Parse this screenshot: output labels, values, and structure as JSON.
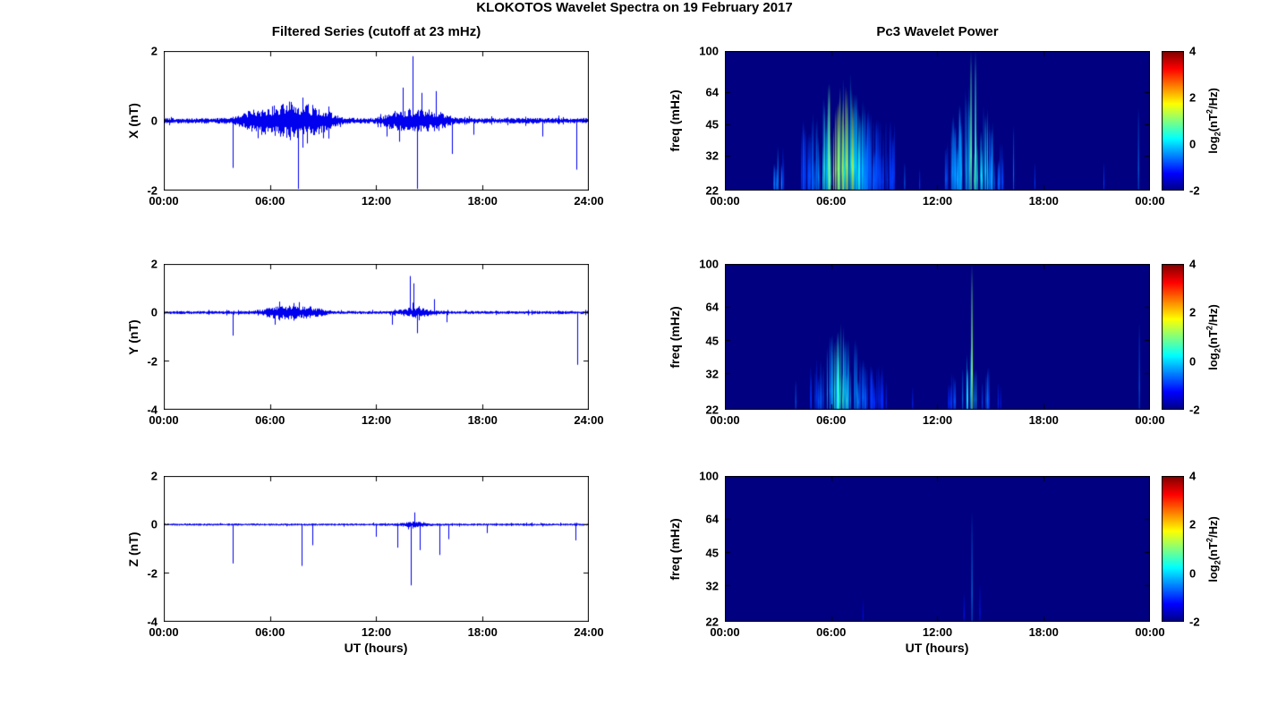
{
  "title": "KLOKOTOS Wavelet Spectra on 19 February 2017",
  "left_column_title": "Filtered Series (cutoff at 23 mHz)",
  "right_column_title": "Pc3 Wavelet Power",
  "xlabel": "UT (hours)",
  "colorbar": {
    "ticks": [
      "4",
      "2",
      "0",
      "-2"
    ],
    "tick_values": [
      4,
      2,
      0,
      -2
    ],
    "clim": [
      -2,
      4
    ],
    "label_pre": "log",
    "label_sub": "2",
    "label_mid": "(nT",
    "label_sup": "2",
    "label_post": "/Hz)"
  },
  "chart_data": [
    {
      "type": "line",
      "ylabel": "X (nT)",
      "ylim": [
        -2,
        2
      ],
      "yticks": [
        2,
        0,
        -2
      ],
      "ytick_labels": [
        "2",
        "0",
        "-2"
      ],
      "xtick_labels": [
        "00:00",
        "06:00",
        "12:00",
        "18:00",
        "24:00"
      ],
      "noise_base": 0.05,
      "bursts": [
        [
          5.0,
          0.9,
          0.1
        ],
        [
          7.0,
          1.5,
          0.3
        ],
        [
          8.8,
          0.9,
          0.14
        ],
        [
          13.0,
          0.6,
          0.1
        ],
        [
          14.3,
          1.0,
          0.16
        ],
        [
          15.5,
          0.7,
          0.1
        ]
      ],
      "spikes": [
        [
          3.9,
          -1.35
        ],
        [
          5.3,
          -0.5
        ],
        [
          7.6,
          -1.95
        ],
        [
          8.1,
          -0.65
        ],
        [
          9.0,
          -0.5
        ],
        [
          12.6,
          -0.45
        ],
        [
          13.3,
          -0.6
        ],
        [
          13.5,
          0.95
        ],
        [
          14.1,
          1.85
        ],
        [
          14.35,
          -1.95
        ],
        [
          14.6,
          0.8
        ],
        [
          15.4,
          0.85
        ],
        [
          16.3,
          -0.95
        ],
        [
          17.5,
          -0.4
        ],
        [
          21.4,
          -0.45
        ],
        [
          23.35,
          -1.4
        ]
      ]
    },
    {
      "type": "heatmap",
      "ylabel": "freq (mHz)",
      "flim": [
        22,
        100
      ],
      "yticks": [
        100,
        64,
        45,
        32,
        22
      ],
      "ytick_labels": [
        "100",
        "64",
        "45",
        "32",
        "22"
      ],
      "xtick_labels": [
        "00:00",
        "06:00",
        "12:00",
        "18:00",
        "00:00"
      ],
      "clim": [
        -2,
        4
      ],
      "background_value": -2,
      "clusters": [
        {
          "t0": 2.7,
          "t1": 3.5,
          "count": 10,
          "peak_t": 3.1,
          "sigma": 0.5,
          "base": -1.2,
          "peak": -0.2,
          "fmin": 25,
          "fmax": 38
        },
        {
          "t0": 4.3,
          "t1": 9.6,
          "count": 120,
          "peak_t": 6.6,
          "sigma": 1.1,
          "base": -0.9,
          "peak": 2.3,
          "fmin": 26,
          "fmax": 88
        },
        {
          "t0": 12.2,
          "t1": 15.9,
          "count": 50,
          "peak_t": 14.0,
          "sigma": 1.1,
          "base": -0.9,
          "peak": 0.9,
          "fmin": 26,
          "fmax": 72
        }
      ],
      "lines": [
        [
          13.9,
          100,
          0.8,
          2
        ],
        [
          14.15,
          100,
          0.55,
          2
        ],
        [
          10.15,
          30,
          -0.6,
          1
        ],
        [
          11.0,
          28,
          -0.9,
          1
        ],
        [
          16.3,
          45,
          -0.5,
          1
        ],
        [
          17.5,
          30,
          -0.9,
          1
        ],
        [
          21.4,
          30,
          -0.9,
          1
        ],
        [
          23.35,
          55,
          -0.5,
          1
        ]
      ]
    },
    {
      "type": "line",
      "ylabel": "Y (nT)",
      "ylim": [
        -4,
        2
      ],
      "yticks": [
        2,
        0,
        -2,
        -4
      ],
      "ytick_labels": [
        "2",
        "0",
        "-2",
        "-4"
      ],
      "xtick_labels": [
        "00:00",
        "06:00",
        "12:00",
        "18:00",
        "24:00"
      ],
      "noise_base": 0.04,
      "bursts": [
        [
          6.8,
          1.3,
          0.14
        ],
        [
          8.4,
          0.8,
          0.08
        ],
        [
          14.2,
          0.9,
          0.1
        ]
      ],
      "spikes": [
        [
          3.9,
          -0.95
        ],
        [
          6.3,
          -0.5
        ],
        [
          12.9,
          -0.5
        ],
        [
          13.9,
          1.5
        ],
        [
          14.15,
          1.2
        ],
        [
          14.35,
          -0.85
        ],
        [
          15.3,
          0.55
        ],
        [
          16.0,
          -0.4
        ],
        [
          23.4,
          -2.15
        ]
      ]
    },
    {
      "type": "heatmap",
      "ylabel": "freq (mHz)",
      "flim": [
        22,
        100
      ],
      "yticks": [
        100,
        64,
        45,
        32,
        22
      ],
      "ytick_labels": [
        "100",
        "64",
        "45",
        "32",
        "22"
      ],
      "xtick_labels": [
        "00:00",
        "06:00",
        "12:00",
        "18:00",
        "00:00"
      ],
      "clim": [
        -2,
        4
      ],
      "background_value": -2,
      "clusters": [
        {
          "t0": 4.8,
          "t1": 9.2,
          "count": 70,
          "peak_t": 6.6,
          "sigma": 1.0,
          "base": -1.0,
          "peak": 0.9,
          "fmin": 25,
          "fmax": 55
        },
        {
          "t0": 12.5,
          "t1": 15.6,
          "count": 20,
          "peak_t": 14.0,
          "sigma": 0.9,
          "base": -1.1,
          "peak": 0.3,
          "fmin": 25,
          "fmax": 45
        }
      ],
      "lines": [
        [
          13.95,
          100,
          1.0,
          2
        ],
        [
          4.0,
          30,
          -0.6,
          1
        ],
        [
          10.6,
          28,
          -1.0,
          1
        ],
        [
          23.4,
          55,
          -0.6,
          1
        ]
      ]
    },
    {
      "type": "line",
      "ylabel": "Z (nT)",
      "ylim": [
        -4,
        2
      ],
      "yticks": [
        2,
        0,
        -2,
        -4
      ],
      "ytick_labels": [
        "2",
        "0",
        "-2",
        "-4"
      ],
      "xtick_labels": [
        "00:00",
        "06:00",
        "12:00",
        "18:00",
        "24:00"
      ],
      "noise_base": 0.028,
      "bursts": [
        [
          14.2,
          0.8,
          0.05
        ]
      ],
      "spikes": [
        [
          3.9,
          -1.6
        ],
        [
          7.8,
          -1.7
        ],
        [
          8.4,
          -0.85
        ],
        [
          12.0,
          -0.5
        ],
        [
          13.2,
          -0.95
        ],
        [
          13.95,
          -2.5
        ],
        [
          14.2,
          0.5
        ],
        [
          14.5,
          -1.05
        ],
        [
          15.6,
          -1.25
        ],
        [
          16.1,
          -0.6
        ],
        [
          18.3,
          -0.35
        ],
        [
          23.3,
          -0.65
        ]
      ]
    },
    {
      "type": "heatmap",
      "ylabel": "freq (mHz)",
      "flim": [
        22,
        100
      ],
      "yticks": [
        100,
        64,
        45,
        32,
        22
      ],
      "ytick_labels": [
        "100",
        "64",
        "45",
        "32",
        "22"
      ],
      "xtick_labels": [
        "00:00",
        "06:00",
        "12:00",
        "18:00",
        "00:00"
      ],
      "clim": [
        -2,
        4
      ],
      "background_value": -2,
      "clusters": [],
      "lines": [
        [
          13.95,
          70,
          -0.35,
          1
        ],
        [
          13.5,
          30,
          -1.1,
          1
        ],
        [
          14.4,
          33,
          -1.1,
          1
        ],
        [
          7.8,
          28,
          -1.2,
          1
        ]
      ]
    }
  ]
}
